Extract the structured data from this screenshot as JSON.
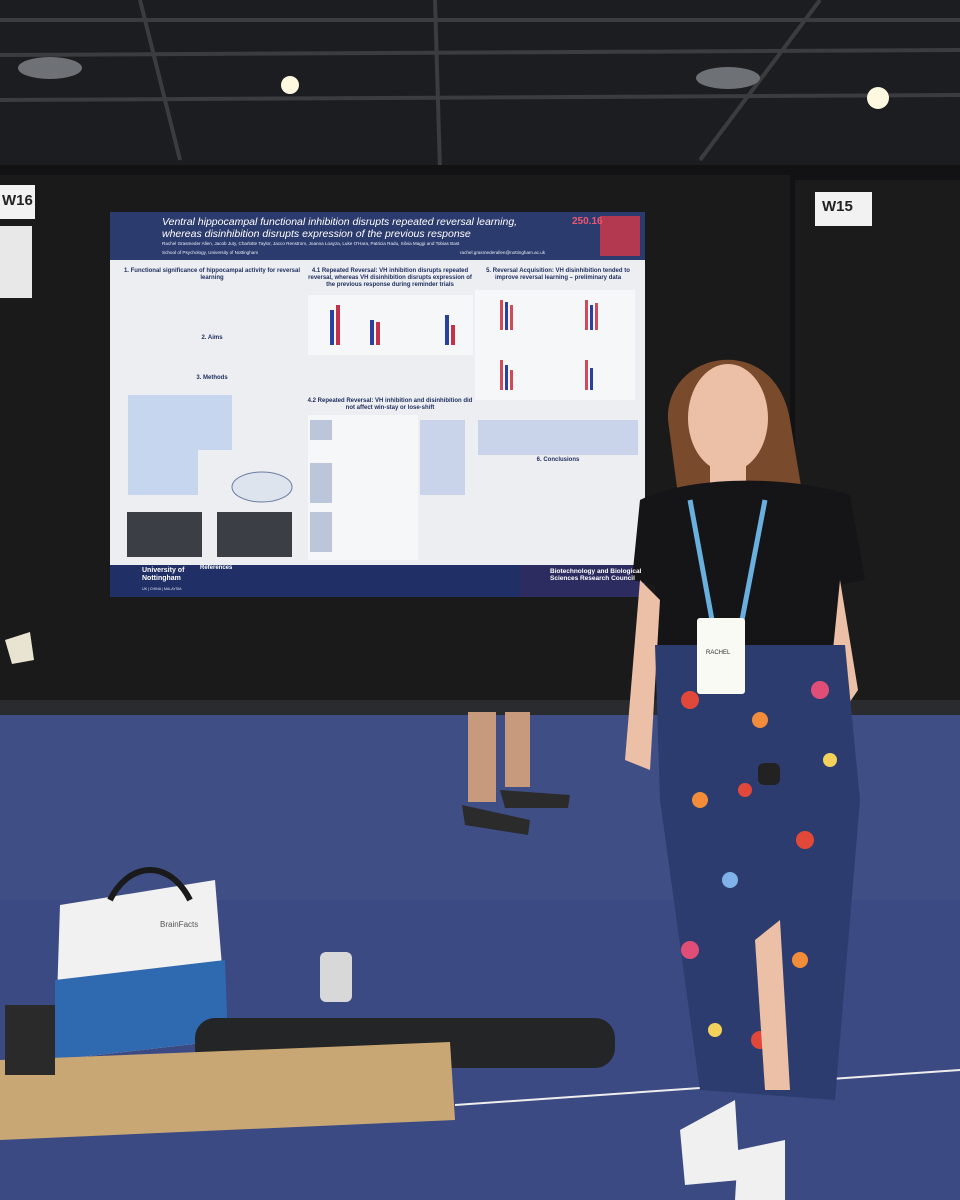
{
  "signs": {
    "left": "W16",
    "right": "W15"
  },
  "poster": {
    "title_line1": "Ventral hippocampal functional inhibition disrupts repeated reversal learning,",
    "title_line2": "whereas disinhibition disrupts expression of the previous response",
    "number": "250.16",
    "authors": "Rachel Grasmeder Allen, Jacob Juty, Charlotte Taylor, Jacco Renstrom, Joanna Loayza, Luke O'Hara, Patricia Radu, Silvia Maggi and Tobias Bast",
    "affiliation": "School of Psychology, University of Nottingham",
    "email": "rachel.grasmederallen@nottingham.ac.uk",
    "sections": [
      "1. Functional significance of hippocampal activity for reversal learning",
      "2. Aims",
      "3. Methods",
      "4.1 Repeated Reversal: VH inhibition disrupts repeated reversal, whereas VH disinhibition disrupts expression of the previous response during reminder trials",
      "4.2 Repeated Reversal: VH inhibition and disinhibition did not affect win-stay or lose-shift",
      "5. Reversal Acquisition: VH disinhibition tended to improve reversal learning – preliminary data",
      "6. Conclusions"
    ],
    "references": "References",
    "university": "University of Nottingham",
    "campuses": "UK | CHINA | MALAYSIA",
    "funder": "Biotechnology and Biological Sciences Research Council"
  },
  "badge": {
    "name": "RACHEL"
  },
  "bag": "BrainFacts"
}
